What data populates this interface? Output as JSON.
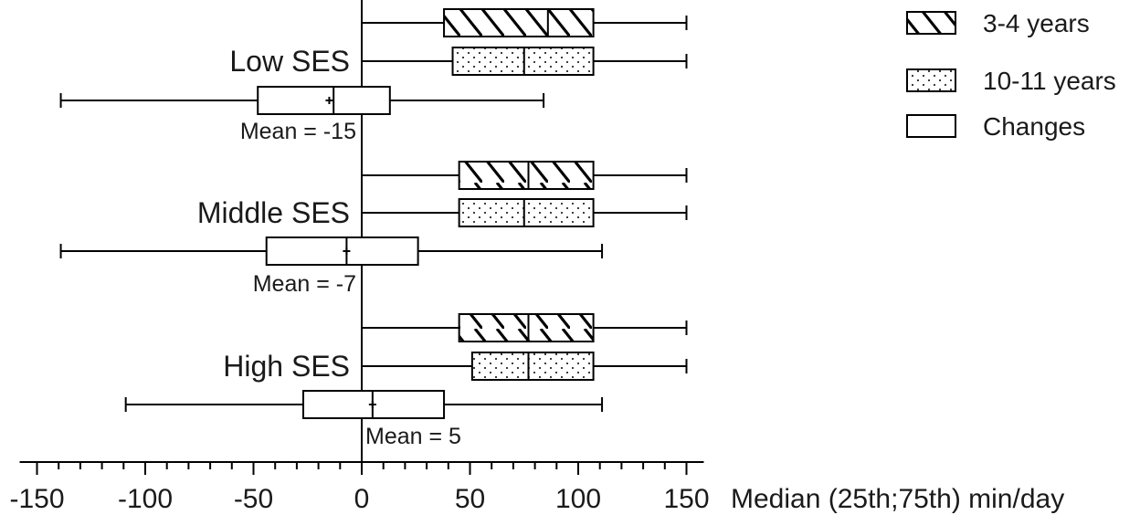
{
  "chart_data": {
    "type": "boxplot",
    "orientation": "horizontal",
    "xlabel": "Median (25th;75th) min/day",
    "xlim": [
      -150,
      150
    ],
    "xticks": [
      -150,
      -100,
      -50,
      0,
      50,
      100,
      150
    ],
    "minor_tick_step": 10,
    "legend_position": "top-right",
    "legend": [
      {
        "name": "3-4 years",
        "pattern": "hatch"
      },
      {
        "name": "10-11 years",
        "pattern": "dots"
      },
      {
        "name": "Changes",
        "pattern": "none"
      }
    ],
    "groups": [
      {
        "label": "Low SES",
        "mean_label": "Mean = -15",
        "boxes": [
          {
            "series": "3-4 years",
            "min": 0,
            "q1": 38,
            "median": 86,
            "q3": 107,
            "max": 150
          },
          {
            "series": "10-11 years",
            "min": 0,
            "q1": 42,
            "median": 75,
            "q3": 107,
            "max": 150
          },
          {
            "series": "Changes",
            "min": -139,
            "q1": -48,
            "median": -13,
            "q3": 13,
            "max": 84,
            "mean": -15
          }
        ]
      },
      {
        "label": "Middle SES",
        "mean_label": "Mean = -7",
        "boxes": [
          {
            "series": "3-4 years",
            "min": 0,
            "q1": 45,
            "median": 77,
            "q3": 107,
            "max": 150
          },
          {
            "series": "10-11 years",
            "min": 0,
            "q1": 45,
            "median": 75,
            "q3": 107,
            "max": 150
          },
          {
            "series": "Changes",
            "min": -139,
            "q1": -44,
            "median": -7,
            "q3": 26,
            "max": 111,
            "mean": -7
          }
        ]
      },
      {
        "label": "High SES",
        "mean_label": "Mean = 5",
        "boxes": [
          {
            "series": "3-4 years",
            "min": 0,
            "q1": 45,
            "median": 77,
            "q3": 107,
            "max": 150
          },
          {
            "series": "10-11 years",
            "min": 0,
            "q1": 51,
            "median": 77,
            "q3": 107,
            "max": 150
          },
          {
            "series": "Changes",
            "min": -109,
            "q1": -27,
            "median": 5,
            "q3": 38,
            "max": 111,
            "mean": 5
          }
        ]
      }
    ]
  }
}
